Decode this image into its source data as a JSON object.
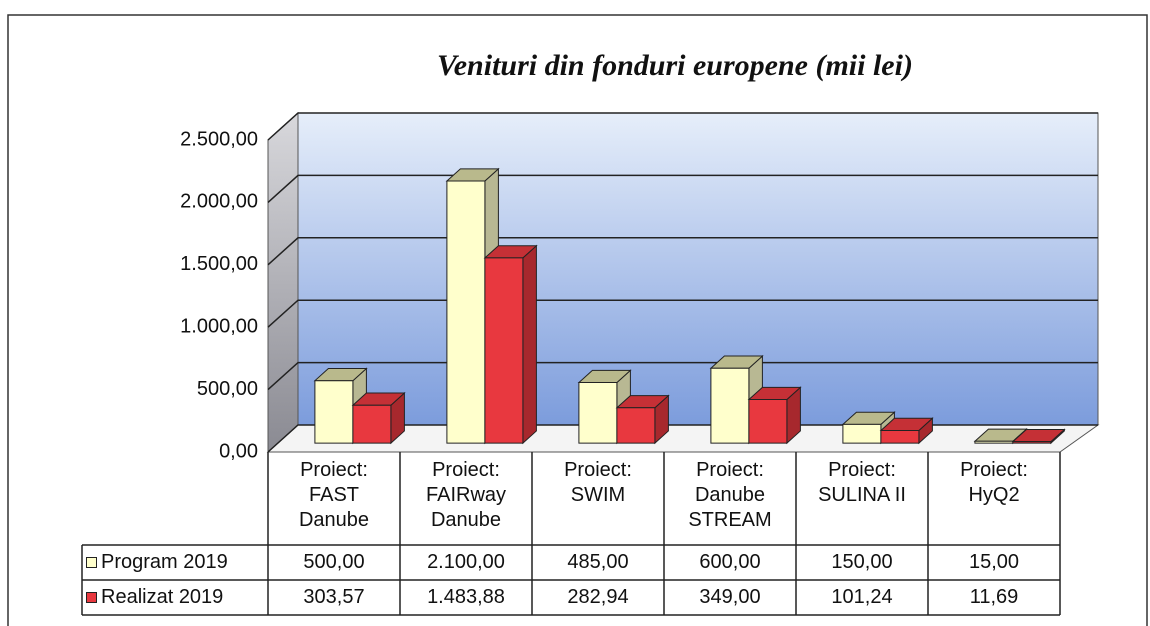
{
  "chart_data": {
    "type": "bar3d",
    "title": "Venituri din fonduri europene (mii lei)",
    "categories": [
      "Proiect:\nFAST\nDanube",
      "Proiect:\nFAIRway\nDanube",
      "Proiect:\nSWIM",
      "Proiect:\nDanube\nSTREAM",
      "Proiect:\nSULINA II",
      "Proiect:\nHyQ2"
    ],
    "series": [
      {
        "name": "Program 2019",
        "color": "#ffffcc",
        "values": [
          500,
          2100,
          485,
          600,
          150,
          15
        ],
        "value_labels": [
          "500,00",
          "2.100,00",
          "485,00",
          "600,00",
          "150,00",
          "15,00"
        ]
      },
      {
        "name": "Realizat 2019",
        "color": "#e8383f",
        "values": [
          303.57,
          1483.88,
          282.94,
          349,
          101.24,
          11.69
        ],
        "value_labels": [
          "303,57",
          "1.483,88",
          "282,94",
          "349,00",
          "101,24",
          "11,69"
        ]
      }
    ],
    "ylim": [
      0,
      2500
    ],
    "yticks": [
      {
        "value": 0,
        "label": "0,00"
      },
      {
        "value": 500,
        "label": "500,00"
      },
      {
        "value": 1000,
        "label": "1.000,00"
      },
      {
        "value": 1500,
        "label": "1.500,00"
      },
      {
        "value": 2000,
        "label": "2.000,00"
      },
      {
        "value": 2500,
        "label": "2.500,00"
      }
    ],
    "grid": true
  }
}
